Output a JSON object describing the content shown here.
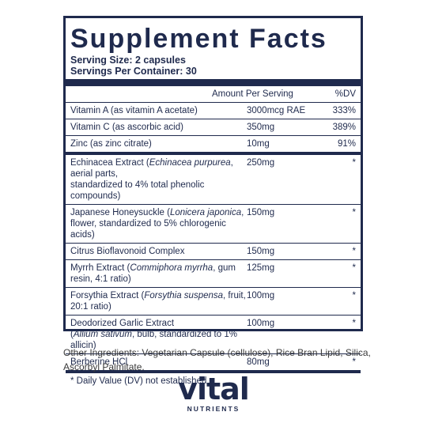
{
  "title": "Supplement Facts",
  "serving_size": "Serving Size: 2 capsules",
  "servings_per_container": "Servings Per Container: 30",
  "header": {
    "amount": "Amount Per Serving",
    "dv": "%DV"
  },
  "vitamins": [
    {
      "name": "Vitamin A (as vitamin A acetate)",
      "amount": "3000mcg RAE",
      "dv": "333%"
    },
    {
      "name": "Vitamin C (as ascorbic acid)",
      "amount": "350mg",
      "dv": "389%"
    },
    {
      "name": "Zinc (as zinc citrate)",
      "amount": "10mg",
      "dv": "91%"
    }
  ],
  "herbals": [
    {
      "name_a": "Echinacea Extract (",
      "name_i": "Echinacea purpurea",
      "name_b": ", aerial parts,",
      "name_line2": "standardized to 4% total phenolic compounds)",
      "amount": "250mg",
      "dv": "*"
    },
    {
      "name_a": "Japanese Honeysuckle (",
      "name_i": "Lonicera japonica",
      "name_b": ",",
      "name_line2": "flower, standardized to 5% chlorogenic acids)",
      "amount": "150mg",
      "dv": "*"
    },
    {
      "name_a": "Citrus Bioflavonoid Complex",
      "name_i": "",
      "name_b": "",
      "name_line2": "",
      "amount": "150mg",
      "dv": "*"
    },
    {
      "name_a": "Myrrh Extract (",
      "name_i": "Commiphora myrrha",
      "name_b": ", gum resin, 4:1 ratio)",
      "name_line2": "",
      "amount": "125mg",
      "dv": "*"
    },
    {
      "name_a": "Forsythia Extract (",
      "name_i": "Forsythia suspensa",
      "name_b": ", fruit, 20:1 ratio)",
      "name_line2": "",
      "amount": "100mg",
      "dv": "*"
    },
    {
      "name_a": "Deodorized Garlic Extract",
      "name_i": "",
      "name_b": "",
      "name_line2_a": "(",
      "name_line2_i": "Allium sativum",
      "name_line2_b": ", bulb, standardized to 1% allicin)",
      "amount": "100mg",
      "dv": "*"
    },
    {
      "name_a": "Berberine HCl",
      "name_i": "",
      "name_b": "",
      "name_line2": "",
      "amount": "80mg",
      "dv": "*"
    }
  ],
  "footnote": "* Daily Value (DV) not established",
  "other_ingredients": "Other Ingredients: Vegetarian Capsule (cellulose), Rice Bran Lipid, Silica, Ascorbyl Palmitate.",
  "logo": {
    "main": "vital",
    "sub": "NUTRIENTS"
  }
}
